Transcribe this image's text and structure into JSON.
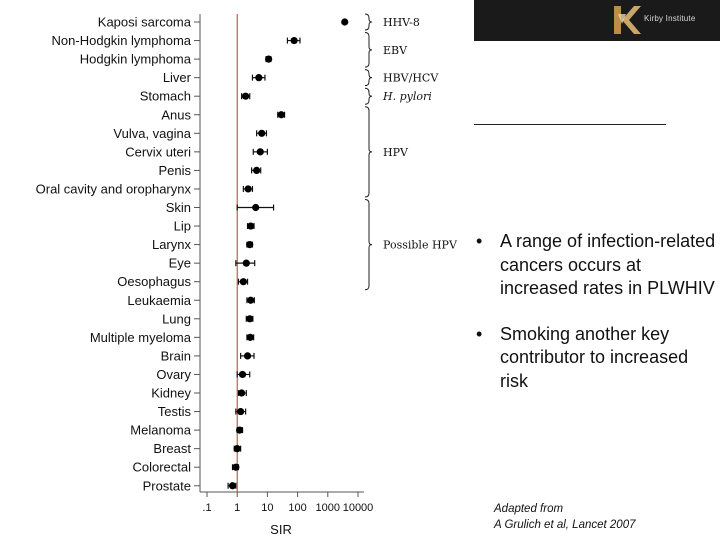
{
  "logo": {
    "text": "Kirby Institute",
    "icon": "kirby-k-logo-icon"
  },
  "bullets": [
    {
      "text": "A range of infection-related cancers occurs at increased rates in PLWHIV"
    },
    {
      "text": "Smoking another key contributor to increased risk"
    }
  ],
  "citation": {
    "line1": "Adapted from",
    "line2": "A Grulich et al, Lancet 2007"
  },
  "chart_data": {
    "type": "forest",
    "xlabel": "SIR",
    "xscale": "log",
    "xlim": [
      0.05,
      20000
    ],
    "xticks": [
      ".1",
      "1",
      "10",
      "100",
      "1000",
      "10000"
    ],
    "xtick_values": [
      0.1,
      1,
      10,
      100,
      1000,
      10000
    ],
    "reference_line": 1,
    "categories": [
      "Kaposi sarcoma",
      "Non-Hodgkin lymphoma",
      "Hodgkin lymphoma",
      "Liver",
      "Stomach",
      "Anus",
      "Vulva, vagina",
      "Cervix uteri",
      "Penis",
      "Oral cavity and oropharynx",
      "Skin",
      "Lip",
      "Larynx",
      "Eye",
      "Oesophagus",
      "Leukaemia",
      "Lung",
      "Multiple myeloma",
      "Brain",
      "Ovary",
      "Kidney",
      "Testis",
      "Melanoma",
      "Breast",
      "Colorectal",
      "Prostate"
    ],
    "sir": [
      3640,
      76.7,
      11.0,
      5.2,
      1.9,
      28.8,
      6.5,
      5.8,
      4.4,
      2.3,
      4.1,
      2.8,
      2.6,
      2.0,
      1.6,
      2.8,
      2.6,
      2.7,
      2.2,
      1.5,
      1.4,
      1.3,
      1.2,
      1.0,
      0.9,
      0.7
    ],
    "ci_low": [
      3430,
      46,
      9,
      3.2,
      1.4,
      22,
      4.4,
      3.4,
      3,
      1.6,
      1.0,
      2.2,
      2.1,
      0.9,
      1.1,
      2.1,
      2.0,
      2.1,
      1.3,
      1.0,
      1.1,
      0.9,
      1.0,
      0.8,
      0.7,
      0.5
    ],
    "ci_high": [
      3860,
      120,
      13,
      8.3,
      2.6,
      37,
      9.3,
      10,
      6,
      3.2,
      16,
      3.6,
      3.2,
      3.8,
      2.2,
      3.7,
      3.3,
      3.5,
      3.6,
      2.6,
      2.0,
      1.9,
      1.5,
      1.3,
      1.1,
      0.9
    ],
    "groups": [
      {
        "label": "HHV-8",
        "italic": false,
        "from": 0,
        "to": 0
      },
      {
        "label": "EBV",
        "italic": false,
        "from": 1,
        "to": 2
      },
      {
        "label": "HBV/HCV",
        "italic": false,
        "from": 3,
        "to": 3
      },
      {
        "label": "H. pylori",
        "italic": true,
        "from": 4,
        "to": 4
      },
      {
        "label": "HPV",
        "italic": false,
        "from": 5,
        "to": 9
      },
      {
        "label": "Possible HPV",
        "italic": false,
        "from": 10,
        "to": 14
      }
    ]
  }
}
